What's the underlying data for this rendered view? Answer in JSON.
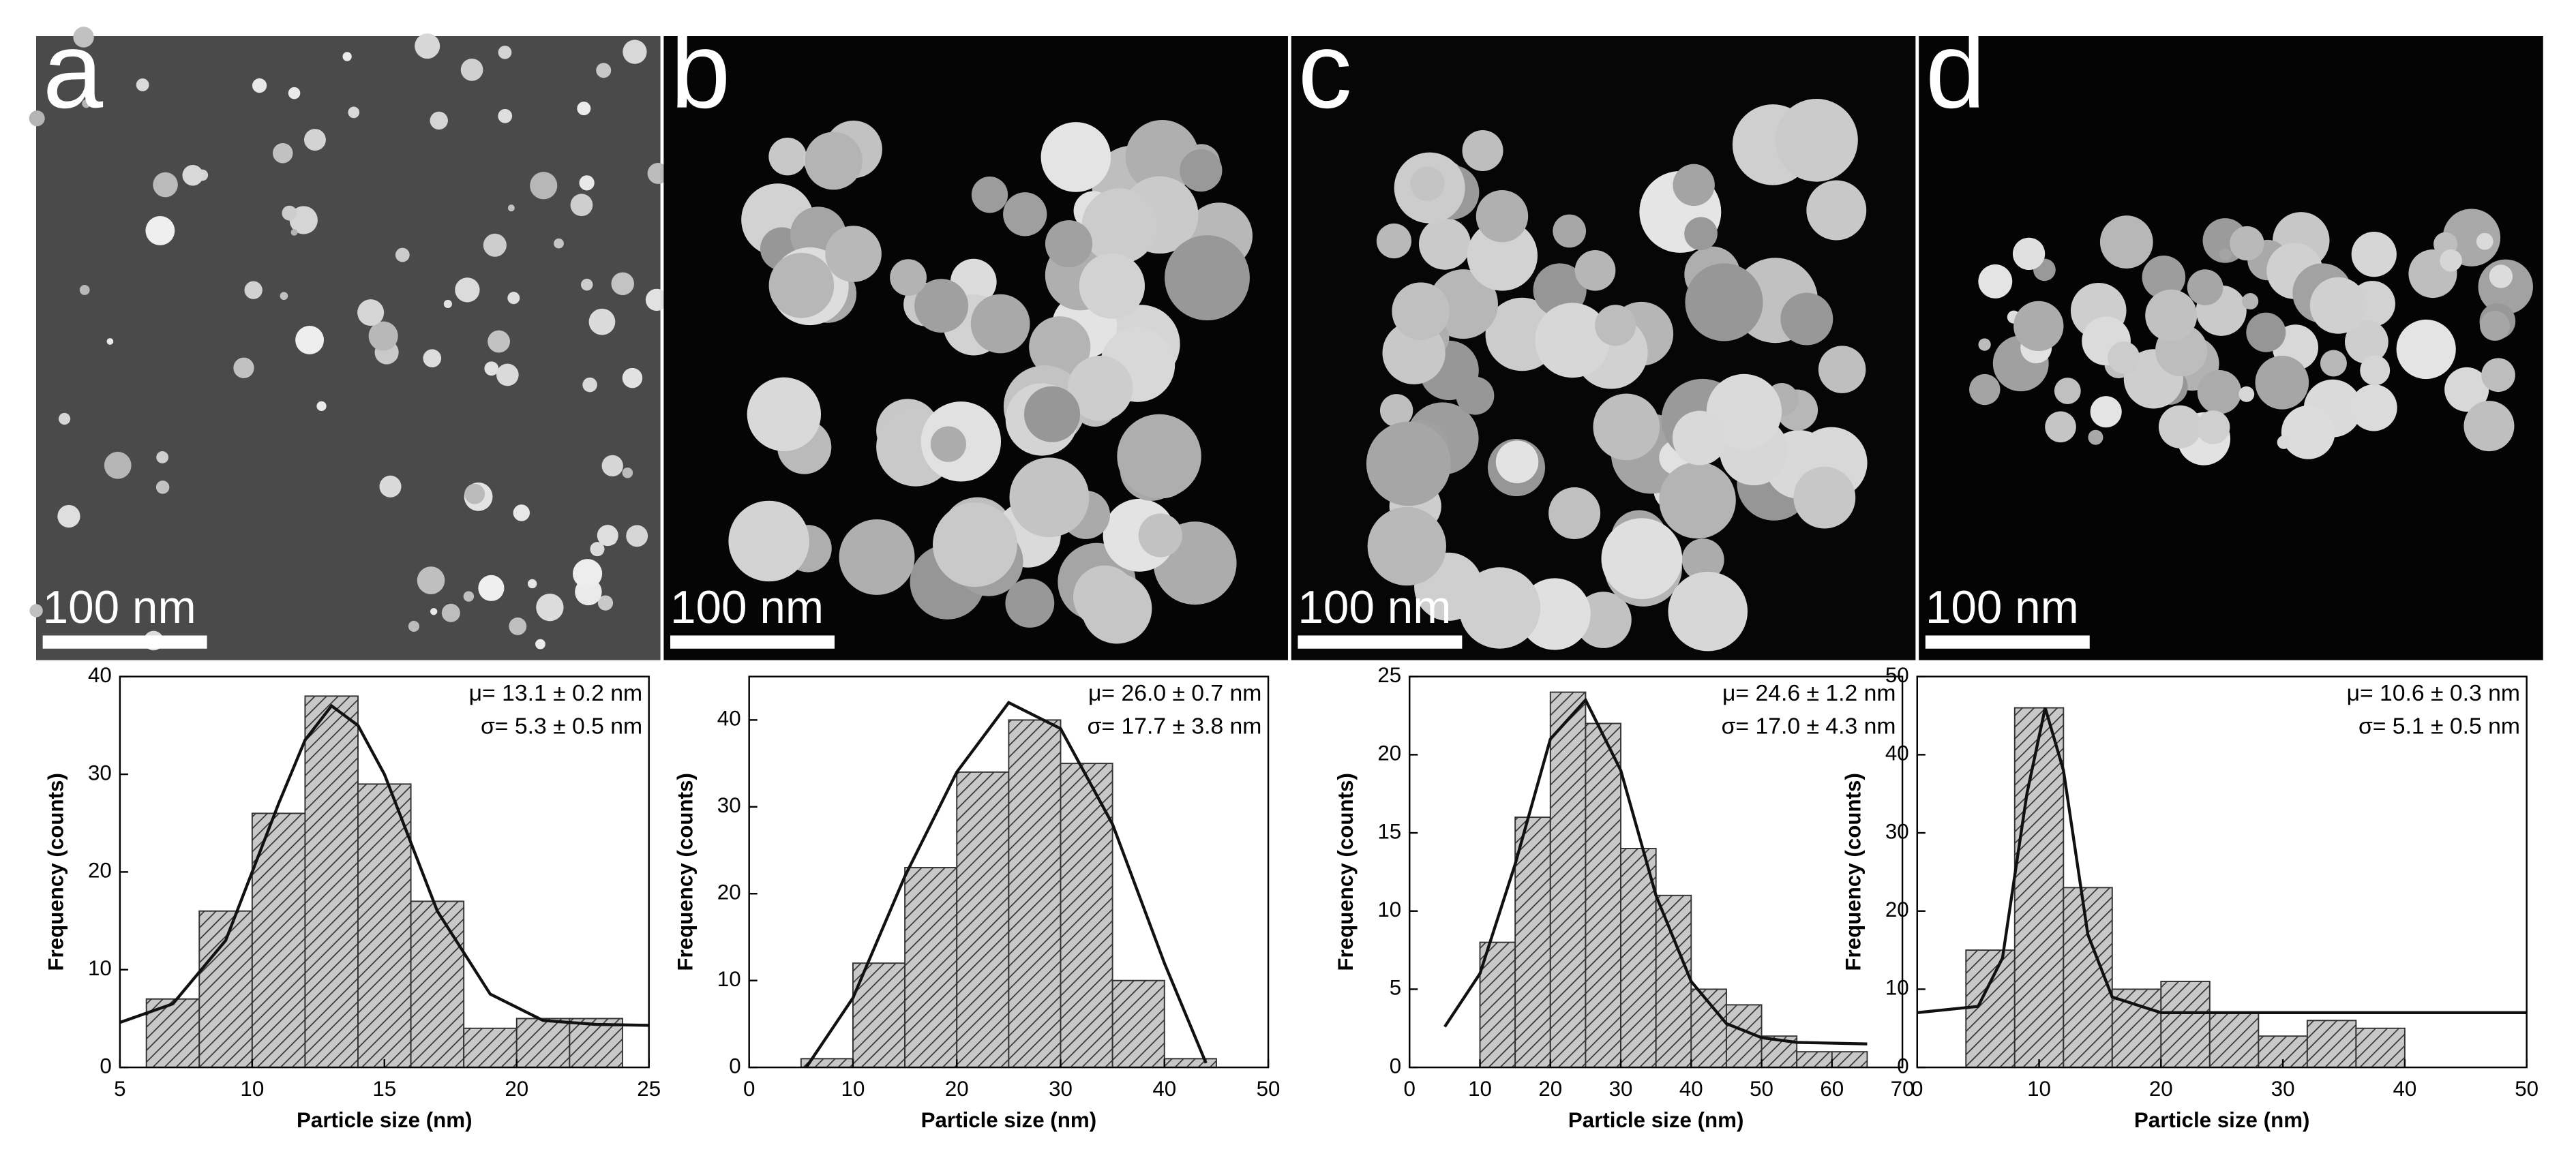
{
  "chart_data": [
    {
      "type": "histogram",
      "panel_label": "a",
      "scale_bar_label": "100 nm",
      "xlabel": "Particle size (nm)",
      "ylabel": "Frequency (counts)",
      "annotations": [
        "μ= 13.1 ± 0.2 nm",
        "σ= 5.3 ± 0.5 nm"
      ],
      "bins": [
        6,
        8,
        10,
        12,
        14,
        16,
        18,
        20,
        22,
        24
      ],
      "counts": [
        7,
        16,
        26,
        38,
        29,
        17,
        4,
        5,
        5
      ],
      "color": "#c8c8c8",
      "fit": {
        "x": [
          5,
          7,
          9,
          11,
          12,
          13,
          14,
          15,
          17,
          19,
          21,
          23,
          25
        ],
        "values": [
          4.6,
          6.5,
          13,
          27,
          33.5,
          37,
          35,
          30,
          16,
          7.5,
          4.8,
          4.4,
          4.3
        ]
      },
      "xlim": [
        5,
        25
      ],
      "ylim": [
        0,
        40
      ],
      "xticks": [
        5,
        10,
        15,
        20,
        25
      ],
      "yticks": [
        0,
        10,
        20,
        30,
        40
      ]
    },
    {
      "type": "histogram",
      "panel_label": "b",
      "scale_bar_label": "100 nm",
      "xlabel": "Particle size (nm)",
      "ylabel": "Frequency (counts)",
      "annotations": [
        "μ= 26.0 ± 0.7 nm",
        "σ= 17.7 ± 3.8 nm"
      ],
      "bins": [
        5,
        10,
        15,
        20,
        25,
        30,
        35,
        40,
        45
      ],
      "counts": [
        1,
        12,
        23,
        34,
        40,
        35,
        10,
        1
      ],
      "color": "#c8c8c8",
      "fit": {
        "x": [
          5.5,
          10,
          15,
          20,
          25,
          30,
          35,
          40,
          44
        ],
        "values": [
          0,
          8,
          22,
          34,
          42,
          39,
          28,
          12,
          0.5
        ]
      },
      "xlim": [
        0,
        50
      ],
      "ylim": [
        0,
        45
      ],
      "xticks": [
        0,
        10,
        20,
        30,
        40,
        50
      ],
      "yticks": [
        0,
        10,
        20,
        30,
        40
      ]
    },
    {
      "type": "histogram",
      "panel_label": "c",
      "scale_bar_label": "100 nm",
      "xlabel": "Particle size (nm)",
      "ylabel": "Frequency (counts)",
      "annotations": [
        "μ= 24.6 ± 1.2 nm",
        "σ= 17.0 ± 4.3 nm"
      ],
      "bins": [
        10,
        15,
        20,
        25,
        30,
        35,
        40,
        45,
        50,
        55,
        60,
        65
      ],
      "counts": [
        8,
        16,
        24,
        22,
        14,
        11,
        5,
        4,
        2,
        1,
        1
      ],
      "color": "#c8c8c8",
      "fit": {
        "x": [
          5,
          10,
          15,
          20,
          25,
          30,
          35,
          40,
          45,
          50,
          55,
          65
        ],
        "values": [
          2.6,
          6,
          13,
          21,
          23.5,
          19,
          11,
          5.5,
          2.8,
          1.9,
          1.6,
          1.5
        ]
      },
      "xlim": [
        0,
        70
      ],
      "ylim": [
        0,
        25
      ],
      "xticks": [
        0,
        10,
        20,
        30,
        40,
        50,
        60,
        70
      ],
      "yticks": [
        0,
        5,
        10,
        15,
        20,
        25
      ]
    },
    {
      "type": "histogram",
      "panel_label": "d",
      "scale_bar_label": "100 nm",
      "xlabel": "Particle size (nm)",
      "ylabel": "Frequency (counts)",
      "annotations": [
        "μ= 10.6 ± 0.3 nm",
        "σ= 5.1 ± 0.5 nm"
      ],
      "bins": [
        4,
        8,
        12,
        16,
        20,
        24,
        28,
        32,
        36,
        40
      ],
      "counts": [
        15,
        46,
        23,
        10,
        11,
        7,
        4,
        6,
        5
      ],
      "color": "#c8c8c8",
      "fit": {
        "x": [
          0,
          5,
          7,
          9,
          10.5,
          12,
          14,
          16,
          20,
          50
        ],
        "values": [
          7,
          7.8,
          14,
          35,
          46,
          38,
          17,
          9,
          7,
          7
        ]
      },
      "xlim": [
        0,
        50
      ],
      "ylim": [
        0,
        50
      ],
      "xticks": [
        0,
        10,
        20,
        30,
        40,
        50
      ],
      "yticks": [
        0,
        10,
        20,
        30,
        40,
        50
      ]
    }
  ]
}
